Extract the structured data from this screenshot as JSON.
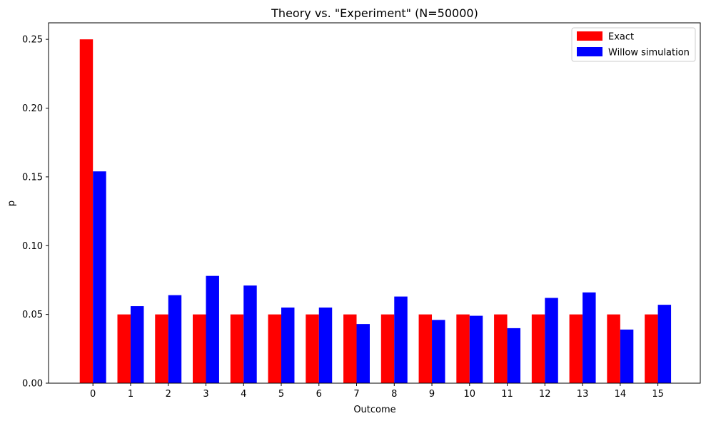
{
  "chart_data": {
    "type": "bar",
    "title": "Theory vs. \"Experiment\" (N=50000)",
    "xlabel": "Outcome",
    "ylabel": "p",
    "categories": [
      "0",
      "1",
      "2",
      "3",
      "4",
      "5",
      "6",
      "7",
      "8",
      "9",
      "10",
      "11",
      "12",
      "13",
      "14",
      "15"
    ],
    "series": [
      {
        "name": "Exact",
        "color": "#ff0000",
        "values": [
          0.25,
          0.05,
          0.05,
          0.05,
          0.05,
          0.05,
          0.05,
          0.05,
          0.05,
          0.05,
          0.05,
          0.05,
          0.05,
          0.05,
          0.05,
          0.05
        ]
      },
      {
        "name": "Willow simulation",
        "color": "#0000ff",
        "values": [
          0.154,
          0.056,
          0.064,
          0.078,
          0.071,
          0.055,
          0.055,
          0.043,
          0.063,
          0.046,
          0.049,
          0.04,
          0.062,
          0.066,
          0.039,
          0.057
        ]
      }
    ],
    "ylim": [
      0,
      0.262
    ],
    "yticks": [
      "0.00",
      "0.05",
      "0.10",
      "0.15",
      "0.20",
      "0.25"
    ],
    "grid": false,
    "legend_position": "top-right"
  }
}
